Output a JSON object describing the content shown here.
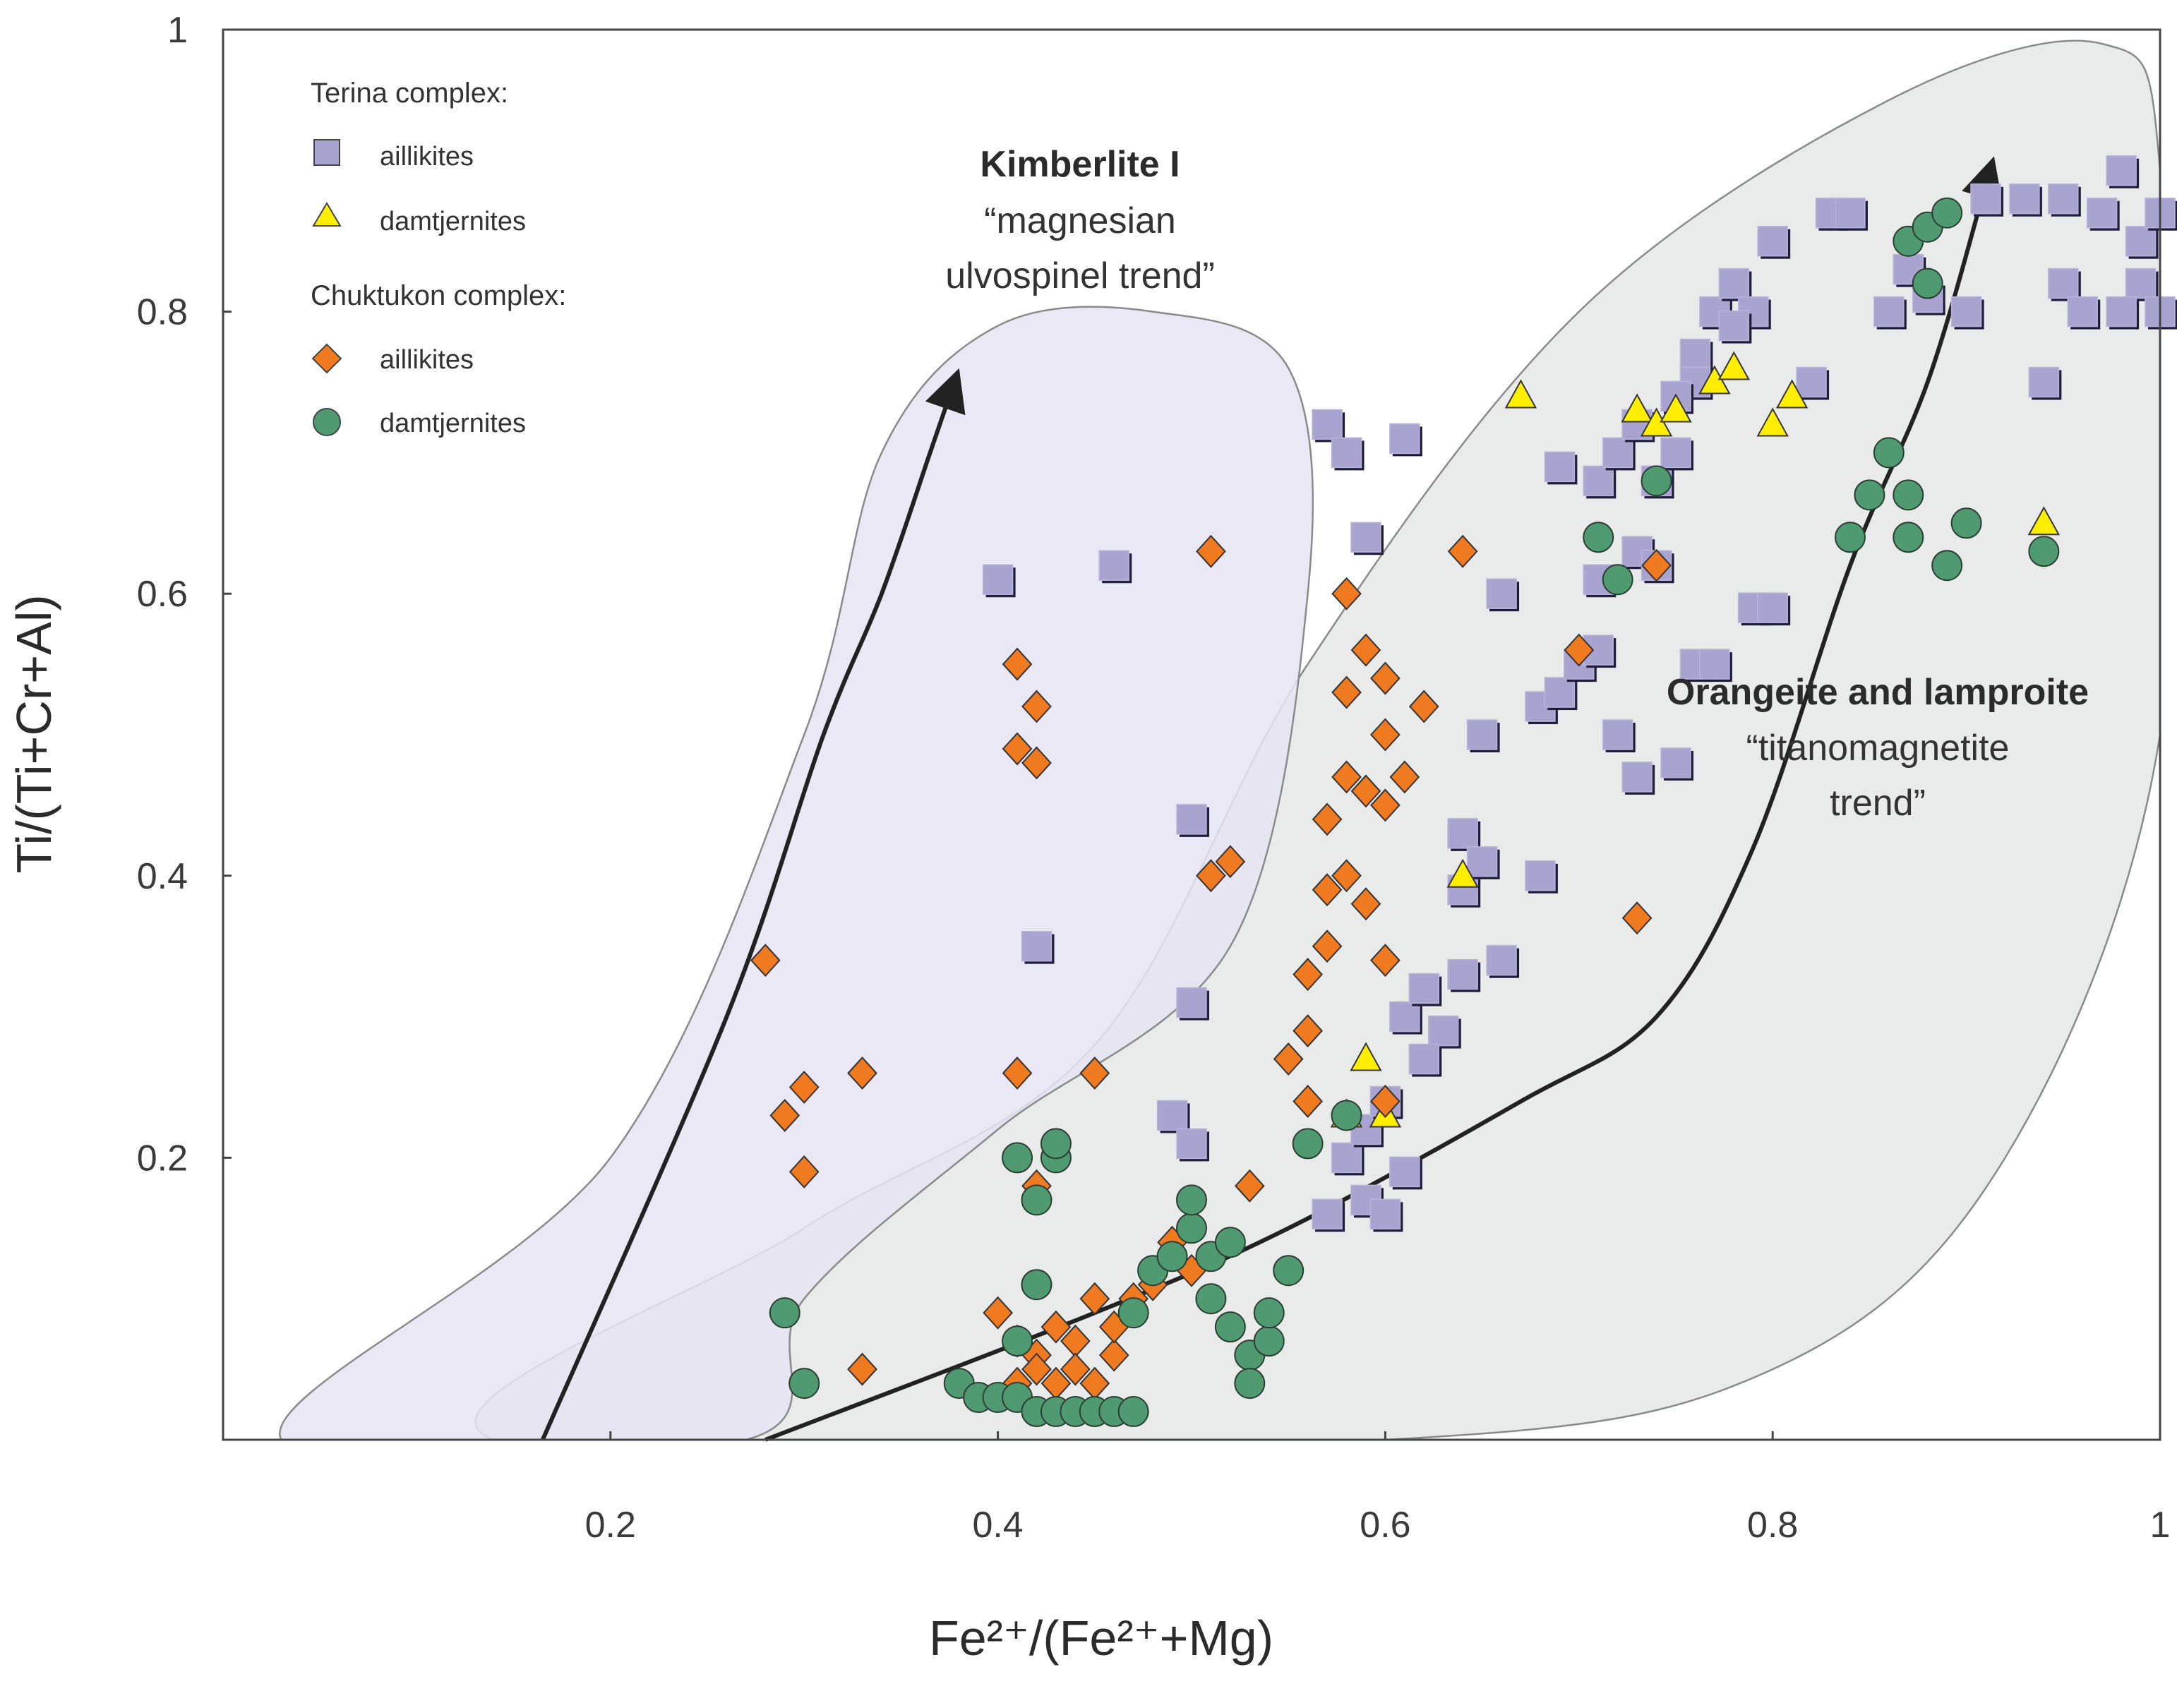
{
  "chart_data": {
    "type": "scatter",
    "title": "",
    "xlabel": "Fe²⁺/(Fe²⁺+Mg)",
    "ylabel": "Ti/(Ti+Cr+Al)",
    "xlim": [
      0,
      1
    ],
    "ylim": [
      0,
      1
    ],
    "x_ticks": [
      "0.2",
      "0.4",
      "0.6",
      "0.8",
      "1"
    ],
    "y_ticks": [
      "0.2",
      "0.4",
      "0.6",
      "0.8",
      "1"
    ],
    "grid": false,
    "legend": {
      "position": "top-left",
      "groups": [
        {
          "title": "Terina complex:",
          "entries": [
            {
              "label": "aillikites",
              "marker": "square",
              "color": "#a9a3d0"
            },
            {
              "label": "damtjernites",
              "marker": "triangle",
              "color": "#ffee00"
            }
          ]
        },
        {
          "title": "Chuktukon complex:",
          "entries": [
            {
              "label": "aillikites",
              "marker": "diamond",
              "color": "#ef7a20"
            },
            {
              "label": "damtjernites",
              "marker": "circle",
              "color": "#4f9a70"
            }
          ]
        }
      ]
    },
    "fields": [
      {
        "name": "Kimberlite I",
        "color": "#e6e4f2",
        "points": [
          [
            0.03,
            0.0
          ],
          [
            0.2,
            0.2
          ],
          [
            0.3,
            0.5
          ],
          [
            0.34,
            0.7
          ],
          [
            0.4,
            0.79
          ],
          [
            0.48,
            0.8
          ],
          [
            0.55,
            0.76
          ],
          [
            0.56,
            0.6
          ],
          [
            0.52,
            0.35
          ],
          [
            0.4,
            0.22
          ],
          [
            0.3,
            0.1
          ],
          [
            0.27,
            0.0
          ]
        ]
      },
      {
        "name": "Orangeite and lamproite",
        "color": "#e9eaea",
        "points": [
          [
            0.14,
            0.0
          ],
          [
            0.3,
            0.15
          ],
          [
            0.45,
            0.28
          ],
          [
            0.56,
            0.55
          ],
          [
            0.7,
            0.8
          ],
          [
            0.86,
            0.95
          ],
          [
            0.97,
            0.99
          ],
          [
            1.0,
            0.9
          ],
          [
            1.0,
            0.5
          ],
          [
            0.92,
            0.2
          ],
          [
            0.8,
            0.05
          ],
          [
            0.6,
            0.0
          ]
        ]
      }
    ],
    "trends": [
      {
        "name": "magnesian ulvospinel trend",
        "points": [
          [
            0.165,
            0.0
          ],
          [
            0.26,
            0.3
          ],
          [
            0.31,
            0.5
          ],
          [
            0.34,
            0.6
          ],
          [
            0.365,
            0.7
          ],
          [
            0.375,
            0.74
          ]
        ]
      },
      {
        "name": "titanomagnetite trend",
        "points": [
          [
            0.28,
            0.0
          ],
          [
            0.45,
            0.09
          ],
          [
            0.55,
            0.15
          ],
          [
            0.67,
            0.24
          ],
          [
            0.74,
            0.3
          ],
          [
            0.79,
            0.42
          ],
          [
            0.84,
            0.62
          ],
          [
            0.88,
            0.75
          ],
          [
            0.91,
            0.89
          ]
        ]
      }
    ],
    "annotations": [
      {
        "lines": [
          "Kimberlite I",
          "“magnesian",
          "ulvospinel trend”"
        ]
      },
      {
        "lines": [
          "Orangeite and lamproite",
          "“titanomagnetite",
          "trend”"
        ]
      }
    ],
    "series": [
      {
        "name": "Terina complex: aillikites",
        "marker": "square",
        "color": "#a9a3d0",
        "points": [
          [
            0.4,
            0.61
          ],
          [
            0.46,
            0.62
          ],
          [
            0.42,
            0.35
          ],
          [
            0.5,
            0.44
          ],
          [
            0.5,
            0.31
          ],
          [
            0.57,
            0.72
          ],
          [
            0.58,
            0.7
          ],
          [
            0.61,
            0.71
          ],
          [
            0.59,
            0.64
          ],
          [
            0.49,
            0.23
          ],
          [
            0.5,
            0.21
          ],
          [
            0.57,
            0.16
          ],
          [
            0.58,
            0.2
          ],
          [
            0.59,
            0.17
          ],
          [
            0.6,
            0.16
          ],
          [
            0.59,
            0.22
          ],
          [
            0.6,
            0.24
          ],
          [
            0.61,
            0.19
          ],
          [
            0.61,
            0.3
          ],
          [
            0.62,
            0.32
          ],
          [
            0.63,
            0.29
          ],
          [
            0.64,
            0.33
          ],
          [
            0.66,
            0.34
          ],
          [
            0.62,
            0.27
          ],
          [
            0.64,
            0.43
          ],
          [
            0.64,
            0.39
          ],
          [
            0.65,
            0.41
          ],
          [
            0.68,
            0.4
          ],
          [
            0.65,
            0.5
          ],
          [
            0.66,
            0.6
          ],
          [
            0.68,
            0.52
          ],
          [
            0.69,
            0.53
          ],
          [
            0.7,
            0.55
          ],
          [
            0.71,
            0.56
          ],
          [
            0.71,
            0.61
          ],
          [
            0.72,
            0.5
          ],
          [
            0.73,
            0.47
          ],
          [
            0.73,
            0.63
          ],
          [
            0.74,
            0.62
          ],
          [
            0.76,
            0.55
          ],
          [
            0.75,
            0.48
          ],
          [
            0.77,
            0.55
          ],
          [
            0.79,
            0.59
          ],
          [
            0.8,
            0.59
          ],
          [
            0.69,
            0.69
          ],
          [
            0.71,
            0.68
          ],
          [
            0.72,
            0.7
          ],
          [
            0.73,
            0.72
          ],
          [
            0.74,
            0.68
          ],
          [
            0.75,
            0.7
          ],
          [
            0.76,
            0.77
          ],
          [
            0.77,
            0.8
          ],
          [
            0.78,
            0.82
          ],
          [
            0.79,
            0.8
          ],
          [
            0.8,
            0.85
          ],
          [
            0.82,
            0.75
          ],
          [
            0.83,
            0.87
          ],
          [
            0.84,
            0.87
          ],
          [
            0.86,
            0.8
          ],
          [
            0.87,
            0.83
          ],
          [
            0.88,
            0.81
          ],
          [
            0.9,
            0.8
          ],
          [
            0.91,
            0.88
          ],
          [
            0.93,
            0.88
          ],
          [
            0.95,
            0.88
          ],
          [
            0.97,
            0.87
          ],
          [
            0.98,
            0.9
          ],
          [
            0.99,
            0.85
          ],
          [
            1.0,
            0.87
          ],
          [
            0.99,
            0.82
          ],
          [
            1.0,
            0.8
          ],
          [
            0.98,
            0.8
          ],
          [
            0.95,
            0.82
          ],
          [
            0.96,
            0.8
          ],
          [
            0.94,
            0.75
          ],
          [
            0.76,
            0.75
          ],
          [
            0.75,
            0.74
          ],
          [
            0.78,
            0.79
          ]
        ]
      },
      {
        "name": "Terina complex: damtjernites",
        "marker": "triangle",
        "color": "#ffee00",
        "points": [
          [
            0.67,
            0.74
          ],
          [
            0.73,
            0.73
          ],
          [
            0.74,
            0.72
          ],
          [
            0.75,
            0.73
          ],
          [
            0.77,
            0.75
          ],
          [
            0.78,
            0.76
          ],
          [
            0.8,
            0.72
          ],
          [
            0.81,
            0.74
          ],
          [
            0.64,
            0.4
          ],
          [
            0.59,
            0.27
          ],
          [
            0.58,
            0.23
          ],
          [
            0.6,
            0.23
          ],
          [
            0.94,
            0.65
          ]
        ]
      },
      {
        "name": "Chuktukon complex: aillikites",
        "marker": "diamond",
        "color": "#ef7a20",
        "points": [
          [
            0.28,
            0.34
          ],
          [
            0.29,
            0.23
          ],
          [
            0.3,
            0.25
          ],
          [
            0.3,
            0.19
          ],
          [
            0.33,
            0.26
          ],
          [
            0.33,
            0.05
          ],
          [
            0.41,
            0.55
          ],
          [
            0.41,
            0.49
          ],
          [
            0.42,
            0.52
          ],
          [
            0.42,
            0.48
          ],
          [
            0.41,
            0.26
          ],
          [
            0.42,
            0.18
          ],
          [
            0.45,
            0.26
          ],
          [
            0.51,
            0.63
          ],
          [
            0.52,
            0.41
          ],
          [
            0.51,
            0.4
          ],
          [
            0.53,
            0.18
          ],
          [
            0.55,
            0.27
          ],
          [
            0.56,
            0.29
          ],
          [
            0.56,
            0.24
          ],
          [
            0.56,
            0.33
          ],
          [
            0.57,
            0.35
          ],
          [
            0.57,
            0.39
          ],
          [
            0.58,
            0.4
          ],
          [
            0.57,
            0.44
          ],
          [
            0.58,
            0.47
          ],
          [
            0.58,
            0.53
          ],
          [
            0.59,
            0.56
          ],
          [
            0.6,
            0.54
          ],
          [
            0.6,
            0.5
          ],
          [
            0.59,
            0.46
          ],
          [
            0.6,
            0.45
          ],
          [
            0.61,
            0.47
          ],
          [
            0.59,
            0.38
          ],
          [
            0.6,
            0.34
          ],
          [
            0.6,
            0.24
          ],
          [
            0.62,
            0.52
          ],
          [
            0.58,
            0.6
          ],
          [
            0.64,
            0.63
          ],
          [
            0.7,
            0.56
          ],
          [
            0.74,
            0.62
          ],
          [
            0.73,
            0.37
          ],
          [
            0.4,
            0.09
          ],
          [
            0.41,
            0.07
          ],
          [
            0.42,
            0.06
          ],
          [
            0.43,
            0.08
          ],
          [
            0.44,
            0.07
          ],
          [
            0.45,
            0.1
          ],
          [
            0.46,
            0.06
          ],
          [
            0.47,
            0.1
          ],
          [
            0.42,
            0.05
          ],
          [
            0.44,
            0.05
          ],
          [
            0.46,
            0.08
          ],
          [
            0.48,
            0.11
          ],
          [
            0.49,
            0.14
          ],
          [
            0.5,
            0.12
          ],
          [
            0.43,
            0.04
          ],
          [
            0.45,
            0.04
          ],
          [
            0.41,
            0.04
          ]
        ]
      },
      {
        "name": "Chuktukon complex: damtjernites",
        "marker": "circle",
        "color": "#4f9a70",
        "points": [
          [
            0.29,
            0.09
          ],
          [
            0.3,
            0.04
          ],
          [
            0.38,
            0.04
          ],
          [
            0.39,
            0.03
          ],
          [
            0.4,
            0.03
          ],
          [
            0.41,
            0.03
          ],
          [
            0.42,
            0.02
          ],
          [
            0.43,
            0.02
          ],
          [
            0.44,
            0.02
          ],
          [
            0.45,
            0.02
          ],
          [
            0.46,
            0.02
          ],
          [
            0.47,
            0.02
          ],
          [
            0.41,
            0.07
          ],
          [
            0.42,
            0.11
          ],
          [
            0.42,
            0.17
          ],
          [
            0.43,
            0.2
          ],
          [
            0.41,
            0.2
          ],
          [
            0.43,
            0.21
          ],
          [
            0.47,
            0.09
          ],
          [
            0.48,
            0.12
          ],
          [
            0.49,
            0.13
          ],
          [
            0.5,
            0.15
          ],
          [
            0.5,
            0.17
          ],
          [
            0.51,
            0.13
          ],
          [
            0.52,
            0.14
          ],
          [
            0.51,
            0.1
          ],
          [
            0.52,
            0.08
          ],
          [
            0.53,
            0.06
          ],
          [
            0.54,
            0.07
          ],
          [
            0.54,
            0.09
          ],
          [
            0.55,
            0.12
          ],
          [
            0.53,
            0.04
          ],
          [
            0.58,
            0.23
          ],
          [
            0.56,
            0.21
          ],
          [
            0.74,
            0.68
          ],
          [
            0.72,
            0.61
          ],
          [
            0.71,
            0.64
          ],
          [
            0.84,
            0.64
          ],
          [
            0.85,
            0.67
          ],
          [
            0.86,
            0.7
          ],
          [
            0.87,
            0.67
          ],
          [
            0.87,
            0.64
          ],
          [
            0.89,
            0.62
          ],
          [
            0.9,
            0.65
          ],
          [
            0.94,
            0.63
          ],
          [
            0.87,
            0.85
          ],
          [
            0.88,
            0.86
          ],
          [
            0.89,
            0.87
          ],
          [
            0.88,
            0.82
          ]
        ]
      }
    ]
  }
}
